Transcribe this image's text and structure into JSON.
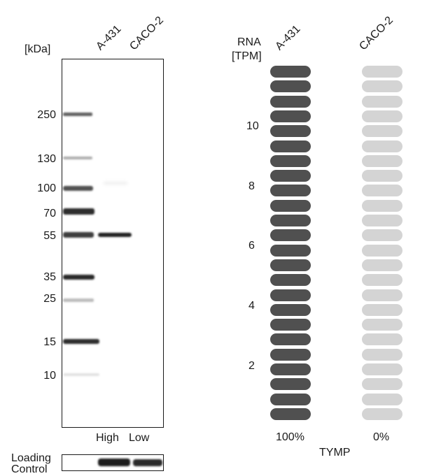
{
  "blot": {
    "unit_label": "[kDa]",
    "lanes": [
      "A-431",
      "CACO-2"
    ],
    "markers": [
      "250",
      "130",
      "100",
      "70",
      "55",
      "35",
      "25",
      "15",
      "10"
    ],
    "levels": [
      "High",
      "Low"
    ],
    "loading_control": [
      "Loading",
      "Control"
    ]
  },
  "rna": {
    "header": [
      "RNA",
      "[TPM]"
    ],
    "lanes": [
      "A-431",
      "CACO-2"
    ],
    "ticks": [
      "10",
      "8",
      "6",
      "4",
      "2"
    ],
    "percentages": [
      "100%",
      "0%"
    ],
    "gene": "TYMP",
    "colors": {
      "high": "#505050",
      "low": "#d4d4d4"
    }
  }
}
